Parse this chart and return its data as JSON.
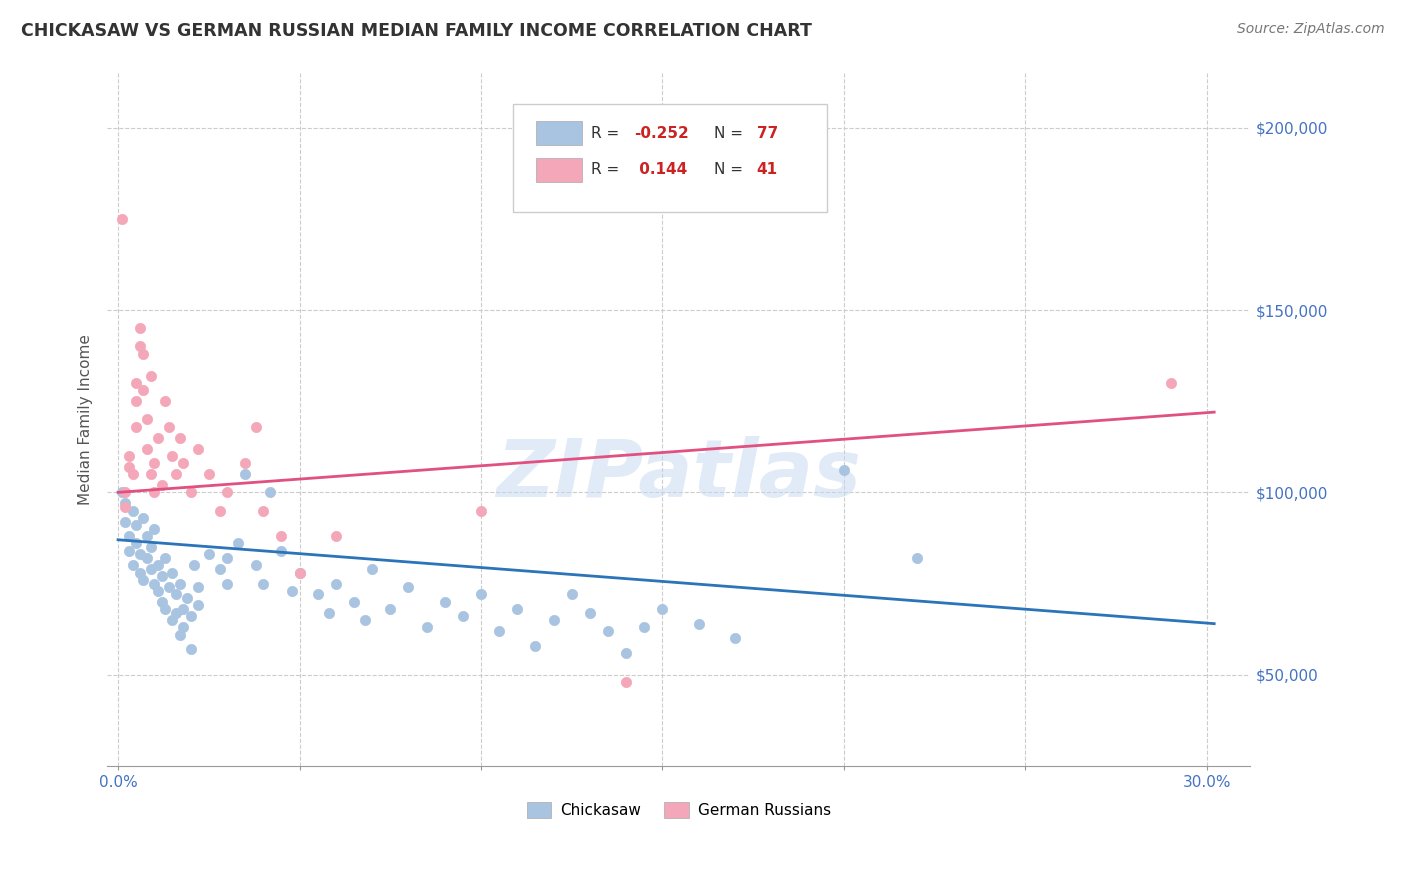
{
  "title": "CHICKASAW VS GERMAN RUSSIAN MEDIAN FAMILY INCOME CORRELATION CHART",
  "source_text": "Source: ZipAtlas.com",
  "ylabel": "Median Family Income",
  "y_tick_values": [
    50000,
    100000,
    150000,
    200000
  ],
  "ylim": [
    25000,
    215000
  ],
  "xlim": [
    -0.003,
    0.312
  ],
  "x_ticks": [
    0.0,
    0.05,
    0.1,
    0.15,
    0.2,
    0.25,
    0.3
  ],
  "watermark": "ZIPatlas",
  "chickasaw_color": "#a8c4e0",
  "german_color": "#f4a7b9",
  "line_blue": "#2b74b8",
  "line_pink": "#e05080",
  "chickasaw_points": [
    [
      0.001,
      100000
    ],
    [
      0.002,
      97000
    ],
    [
      0.002,
      92000
    ],
    [
      0.003,
      88000
    ],
    [
      0.003,
      84000
    ],
    [
      0.004,
      95000
    ],
    [
      0.004,
      80000
    ],
    [
      0.005,
      91000
    ],
    [
      0.005,
      86000
    ],
    [
      0.006,
      78000
    ],
    [
      0.006,
      83000
    ],
    [
      0.007,
      93000
    ],
    [
      0.007,
      76000
    ],
    [
      0.008,
      88000
    ],
    [
      0.008,
      82000
    ],
    [
      0.009,
      79000
    ],
    [
      0.009,
      85000
    ],
    [
      0.01,
      75000
    ],
    [
      0.01,
      90000
    ],
    [
      0.011,
      73000
    ],
    [
      0.011,
      80000
    ],
    [
      0.012,
      77000
    ],
    [
      0.012,
      70000
    ],
    [
      0.013,
      82000
    ],
    [
      0.013,
      68000
    ],
    [
      0.014,
      74000
    ],
    [
      0.015,
      78000
    ],
    [
      0.015,
      65000
    ],
    [
      0.016,
      72000
    ],
    [
      0.016,
      67000
    ],
    [
      0.017,
      75000
    ],
    [
      0.017,
      61000
    ],
    [
      0.018,
      68000
    ],
    [
      0.018,
      63000
    ],
    [
      0.019,
      71000
    ],
    [
      0.02,
      66000
    ],
    [
      0.02,
      57000
    ],
    [
      0.021,
      80000
    ],
    [
      0.022,
      74000
    ],
    [
      0.022,
      69000
    ],
    [
      0.025,
      83000
    ],
    [
      0.028,
      79000
    ],
    [
      0.03,
      75000
    ],
    [
      0.03,
      82000
    ],
    [
      0.033,
      86000
    ],
    [
      0.035,
      105000
    ],
    [
      0.038,
      80000
    ],
    [
      0.04,
      75000
    ],
    [
      0.042,
      100000
    ],
    [
      0.045,
      84000
    ],
    [
      0.048,
      73000
    ],
    [
      0.05,
      78000
    ],
    [
      0.055,
      72000
    ],
    [
      0.058,
      67000
    ],
    [
      0.06,
      75000
    ],
    [
      0.065,
      70000
    ],
    [
      0.068,
      65000
    ],
    [
      0.07,
      79000
    ],
    [
      0.075,
      68000
    ],
    [
      0.08,
      74000
    ],
    [
      0.085,
      63000
    ],
    [
      0.09,
      70000
    ],
    [
      0.095,
      66000
    ],
    [
      0.1,
      72000
    ],
    [
      0.105,
      62000
    ],
    [
      0.11,
      68000
    ],
    [
      0.115,
      58000
    ],
    [
      0.12,
      65000
    ],
    [
      0.125,
      72000
    ],
    [
      0.13,
      67000
    ],
    [
      0.135,
      62000
    ],
    [
      0.14,
      56000
    ],
    [
      0.145,
      63000
    ],
    [
      0.15,
      68000
    ],
    [
      0.16,
      64000
    ],
    [
      0.17,
      60000
    ],
    [
      0.2,
      106000
    ],
    [
      0.22,
      82000
    ]
  ],
  "german_points": [
    [
      0.001,
      175000
    ],
    [
      0.002,
      100000
    ],
    [
      0.002,
      96000
    ],
    [
      0.003,
      107000
    ],
    [
      0.003,
      110000
    ],
    [
      0.004,
      105000
    ],
    [
      0.005,
      130000
    ],
    [
      0.005,
      118000
    ],
    [
      0.005,
      125000
    ],
    [
      0.006,
      140000
    ],
    [
      0.006,
      145000
    ],
    [
      0.007,
      138000
    ],
    [
      0.007,
      128000
    ],
    [
      0.008,
      120000
    ],
    [
      0.008,
      112000
    ],
    [
      0.009,
      132000
    ],
    [
      0.009,
      105000
    ],
    [
      0.01,
      108000
    ],
    [
      0.01,
      100000
    ],
    [
      0.011,
      115000
    ],
    [
      0.012,
      102000
    ],
    [
      0.013,
      125000
    ],
    [
      0.014,
      118000
    ],
    [
      0.015,
      110000
    ],
    [
      0.016,
      105000
    ],
    [
      0.017,
      115000
    ],
    [
      0.018,
      108000
    ],
    [
      0.02,
      100000
    ],
    [
      0.022,
      112000
    ],
    [
      0.025,
      105000
    ],
    [
      0.028,
      95000
    ],
    [
      0.03,
      100000
    ],
    [
      0.035,
      108000
    ],
    [
      0.038,
      118000
    ],
    [
      0.04,
      95000
    ],
    [
      0.045,
      88000
    ],
    [
      0.05,
      78000
    ],
    [
      0.06,
      88000
    ],
    [
      0.1,
      95000
    ],
    [
      0.14,
      48000
    ],
    [
      0.29,
      130000
    ]
  ]
}
